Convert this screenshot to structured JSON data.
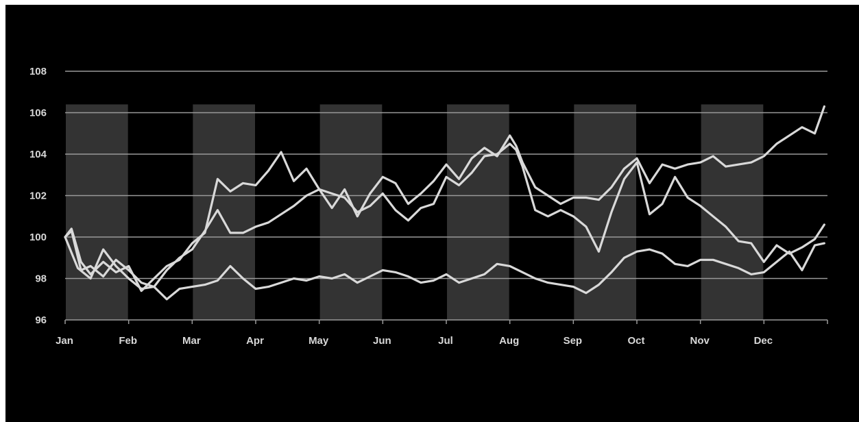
{
  "chart_data": {
    "type": "line",
    "title": "",
    "xlabel": "",
    "ylabel": "",
    "ylim": [
      96,
      108
    ],
    "yticks": [
      96,
      98,
      100,
      102,
      104,
      106,
      108
    ],
    "grid": true,
    "categories": [
      "Jan",
      "Feb",
      "Mar",
      "Apr",
      "May",
      "Jun",
      "Jul",
      "Aug",
      "Sep",
      "Oct",
      "Nov",
      "Dec"
    ],
    "shaded_months": [
      "Jan",
      "Mar",
      "May",
      "Jul",
      "Sep",
      "Nov"
    ],
    "colors": {
      "background": "#000000",
      "line": "#d9d9d9",
      "grid": "#9a9a9a",
      "shade": "#333333",
      "text": "#d8d8d8"
    },
    "series": [
      {
        "x": [
          0,
          0.1,
          0.25,
          0.4,
          0.6,
          0.8,
          1.0,
          1.2,
          1.4,
          1.6,
          1.8,
          2.0,
          2.2,
          2.4,
          2.6,
          2.8,
          3.0,
          3.2,
          3.4,
          3.5,
          3.6,
          3.8,
          4.0,
          4.2,
          4.4,
          4.6,
          4.8,
          5.0,
          5.2,
          5.4,
          5.6,
          5.8,
          6.0,
          6.2,
          6.4,
          6.6,
          6.8,
          7.0,
          7.1,
          7.2,
          7.4,
          7.6,
          7.8,
          8.0,
          8.2,
          8.4,
          8.6,
          8.8,
          9.0,
          9.2,
          9.4,
          9.6,
          9.8,
          10.0,
          10.2,
          10.4,
          10.6,
          10.8,
          11.0,
          11.2,
          11.4,
          11.6,
          11.8,
          11.95
        ],
        "y": [
          100.0,
          100.4,
          98.8,
          98.2,
          98.8,
          98.3,
          98.6,
          97.4,
          98.0,
          98.6,
          98.9,
          99.7,
          100.2,
          102.8,
          102.2,
          102.6,
          102.5,
          103.2,
          104.1,
          103.4,
          102.7,
          103.3,
          102.3,
          101.4,
          102.3,
          101.0,
          102.1,
          102.9,
          102.6,
          101.6,
          102.1,
          102.7,
          103.5,
          102.8,
          103.8,
          104.3,
          103.9,
          104.9,
          104.4,
          103.6,
          102.4,
          102.0,
          101.6,
          101.9,
          101.9,
          101.8,
          102.4,
          103.3,
          103.8,
          102.6,
          103.5,
          103.3,
          103.5,
          103.6,
          103.9,
          103.4,
          103.5,
          103.6,
          103.9,
          104.5,
          104.9,
          105.3,
          105.0,
          106.3
        ]
      },
      {
        "x": [
          0,
          0.1,
          0.25,
          0.4,
          0.6,
          0.8,
          1.0,
          1.2,
          1.4,
          1.6,
          1.8,
          2.0,
          2.2,
          2.4,
          2.6,
          2.8,
          3.0,
          3.2,
          3.4,
          3.6,
          3.8,
          4.0,
          4.2,
          4.4,
          4.6,
          4.8,
          5.0,
          5.2,
          5.4,
          5.6,
          5.8,
          6.0,
          6.2,
          6.4,
          6.6,
          6.8,
          7.0,
          7.1,
          7.2,
          7.4,
          7.6,
          7.8,
          8.0,
          8.2,
          8.4,
          8.6,
          8.8,
          9.0,
          9.2,
          9.4,
          9.6,
          9.8,
          10.0,
          10.2,
          10.4,
          10.6,
          10.8,
          11.0,
          11.2,
          11.4,
          11.6,
          11.8,
          11.95
        ],
        "y": [
          100.0,
          100.3,
          98.4,
          98.6,
          98.1,
          98.9,
          98.4,
          97.8,
          97.6,
          98.4,
          99.0,
          99.4,
          100.3,
          101.3,
          100.2,
          100.2,
          100.5,
          100.7,
          101.1,
          101.5,
          102.0,
          102.3,
          102.1,
          101.9,
          101.2,
          101.5,
          102.1,
          101.3,
          100.8,
          101.4,
          101.6,
          102.9,
          102.5,
          103.1,
          103.9,
          104.0,
          104.5,
          104.2,
          103.4,
          101.3,
          101.0,
          101.3,
          101.0,
          100.5,
          99.3,
          101.2,
          102.8,
          103.6,
          101.1,
          101.6,
          102.9,
          101.9,
          101.5,
          101.0,
          100.5,
          99.8,
          99.7,
          98.8,
          99.6,
          99.2,
          99.5,
          99.9,
          100.6
        ]
      },
      {
        "x": [
          0,
          0.2,
          0.4,
          0.6,
          0.8,
          1.0,
          1.2,
          1.4,
          1.6,
          1.8,
          2.0,
          2.2,
          2.4,
          2.6,
          2.8,
          3.0,
          3.2,
          3.4,
          3.6,
          3.8,
          4.0,
          4.2,
          4.4,
          4.6,
          4.8,
          5.0,
          5.2,
          5.4,
          5.6,
          5.8,
          6.0,
          6.2,
          6.4,
          6.6,
          6.8,
          7.0,
          7.2,
          7.4,
          7.6,
          7.8,
          8.0,
          8.2,
          8.4,
          8.6,
          8.8,
          9.0,
          9.2,
          9.4,
          9.6,
          9.8,
          10.0,
          10.2,
          10.4,
          10.6,
          10.8,
          11.0,
          11.2,
          11.4,
          11.6,
          11.8,
          11.95
        ],
        "y": [
          100.0,
          98.5,
          98.0,
          99.4,
          98.6,
          98.0,
          97.5,
          97.6,
          97.0,
          97.5,
          97.6,
          97.7,
          97.9,
          98.6,
          98.0,
          97.5,
          97.6,
          97.8,
          98.0,
          97.9,
          98.1,
          98.0,
          98.2,
          97.8,
          98.1,
          98.4,
          98.3,
          98.1,
          97.8,
          97.9,
          98.2,
          97.8,
          98.0,
          98.2,
          98.7,
          98.6,
          98.3,
          98.0,
          97.8,
          97.7,
          97.6,
          97.3,
          97.7,
          98.3,
          99.0,
          99.3,
          99.4,
          99.2,
          98.7,
          98.6,
          98.9,
          98.9,
          98.7,
          98.5,
          98.2,
          98.3,
          98.8,
          99.3,
          98.4,
          99.6,
          99.7
        ]
      }
    ]
  }
}
